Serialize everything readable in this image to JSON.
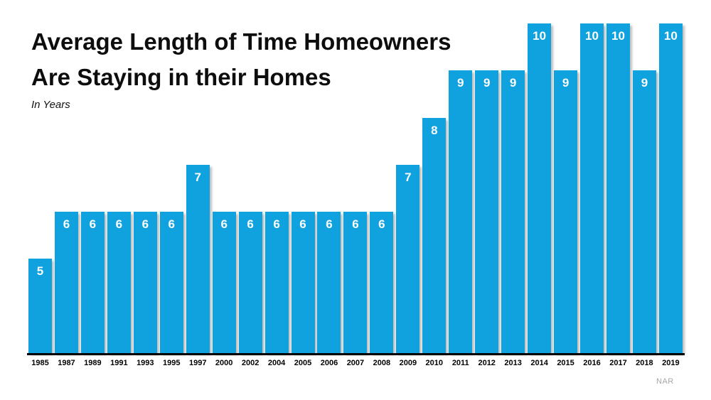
{
  "title": {
    "line1": "Average Length of Time Homeowners",
    "line2": "Are Staying in their Homes",
    "subtitle": "In Years"
  },
  "source": "NAR",
  "colors": {
    "bar": "#0FA2DF",
    "bar_value_label": "#FFFFFF",
    "axis": "#000000",
    "title_text": "#0D0D0D",
    "source_text": "#A6A6A6",
    "background": "#FFFFFF"
  },
  "chart_data": {
    "type": "bar",
    "title": "Average Length of Time Homeowners Are Staying in their Homes",
    "subtitle": "In Years",
    "categories": [
      "1985",
      "1987",
      "1989",
      "1991",
      "1993",
      "1995",
      "1997",
      "2000",
      "2002",
      "2004",
      "2005",
      "2006",
      "2007",
      "2008",
      "2009",
      "2010",
      "2011",
      "2012",
      "2013",
      "2014",
      "2015",
      "2016",
      "2017",
      "2018",
      "2019"
    ],
    "values": [
      5,
      6,
      6,
      6,
      6,
      6,
      7,
      6,
      6,
      6,
      6,
      6,
      6,
      6,
      7,
      8,
      9,
      9,
      9,
      10,
      9,
      10,
      10,
      9,
      10
    ],
    "xlabel": "",
    "ylabel": "",
    "ylim": [
      3,
      10
    ],
    "axis_truncated_at": 3,
    "grid": false,
    "legend": false,
    "value_labels_position": "inside-top",
    "bar_color": "#0FA2DF",
    "source": "NAR"
  }
}
